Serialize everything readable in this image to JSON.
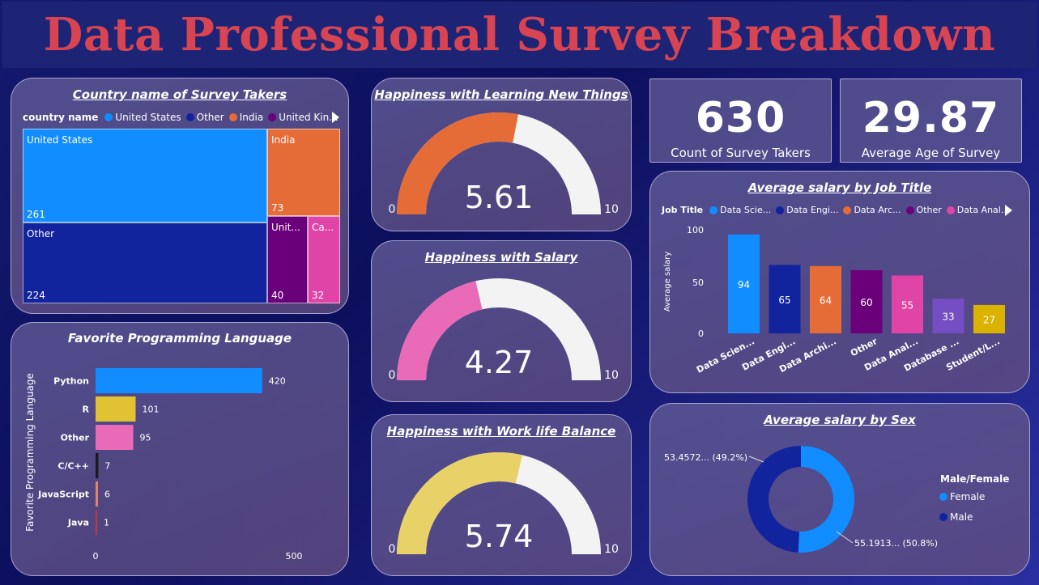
{
  "header": {
    "title": "Data Professional Survey Breakdown"
  },
  "treemap": {
    "title": "Country name of Survey Takers",
    "legend_label": "country name",
    "legend": [
      {
        "label": "United States",
        "color": "#118dff"
      },
      {
        "label": "Other",
        "color": "#12239e"
      },
      {
        "label": "India",
        "color": "#e66c37"
      },
      {
        "label": "United Kin...",
        "color": "#6b007b"
      }
    ],
    "cells": [
      {
        "name": "United States",
        "value": "261",
        "color": "#118dff"
      },
      {
        "name": "Other",
        "value": "224",
        "color": "#12239e"
      },
      {
        "name": "India",
        "value": "73",
        "color": "#e66c37"
      },
      {
        "name": "Unit...",
        "value": "40",
        "color": "#6b007b"
      },
      {
        "name": "Ca...",
        "value": "32",
        "color": "#e044a7"
      }
    ]
  },
  "languages": {
    "title": "Favorite Programming Language",
    "ylabel": "Favorite Programming Language",
    "x_ticks": [
      "0",
      "500"
    ],
    "xmax": 1000
  },
  "gauges": [
    {
      "title": "Happiness with Learning New Things",
      "value": 5.61,
      "label": "5.61",
      "min": "0",
      "max": "10",
      "color": "#e66c37"
    },
    {
      "title": "Happiness with Salary",
      "value": 4.27,
      "label": "4.27",
      "min": "0",
      "max": "10",
      "color": "#e96bb8"
    },
    {
      "title": "Happiness with Work life Balance",
      "value": 5.74,
      "label": "5.74",
      "min": "0",
      "max": "10",
      "color": "#e8d166"
    }
  ],
  "kpis": [
    {
      "value": "630",
      "label": "Count of Survey Takers"
    },
    {
      "value": "29.87",
      "label": "Average Age of Survey Takers"
    }
  ],
  "salary_job": {
    "title": "Average salary by Job Title",
    "legend_label": "Job Title",
    "legend": [
      {
        "label": "Data Scie...",
        "color": "#118dff"
      },
      {
        "label": "Data Engi...",
        "color": "#12239e"
      },
      {
        "label": "Data Arc...",
        "color": "#e66c37"
      },
      {
        "label": "Other",
        "color": "#6b007b"
      },
      {
        "label": "Data Anal...",
        "color": "#e044a7"
      }
    ],
    "ylabel": "Average salary",
    "y_ticks": [
      "0",
      "50",
      "100"
    ]
  },
  "salary_sex": {
    "title": "Average salary by Sex",
    "legend_title": "Male/Female",
    "legend": [
      {
        "label": "Female",
        "color": "#118dff"
      },
      {
        "label": "Male",
        "color": "#12239e"
      }
    ],
    "labels": [
      "53.4572... (49.2%)",
      "55.1913... (50.8%)"
    ]
  },
  "chart_data": [
    {
      "type": "treemap",
      "title": "Country name of Survey Takers",
      "categories": [
        "United States",
        "Other",
        "India",
        "United Kingdom",
        "Canada"
      ],
      "values": [
        261,
        224,
        73,
        40,
        32
      ]
    },
    {
      "type": "bar",
      "orientation": "horizontal",
      "title": "Favorite Programming Language",
      "ylabel": "Favorite Programming Language",
      "categories": [
        "Python",
        "R",
        "Other",
        "C/C++",
        "JavaScript",
        "Java"
      ],
      "values": [
        420,
        101,
        95,
        7,
        6,
        1
      ],
      "colors": [
        "#118dff",
        "#e0c232",
        "#e96bb8",
        "#1a1a1a",
        "#e8836b",
        "#c43a3a"
      ],
      "xlim": [
        0,
        1000
      ]
    },
    {
      "type": "bar",
      "title": "Average salary by Job Title",
      "ylabel": "Average salary",
      "categories": [
        "Data Scien...",
        "Data Engi...",
        "Data Archi...",
        "Other",
        "Data Anal...",
        "Database ...",
        "Student/L..."
      ],
      "values": [
        94,
        65,
        64,
        60,
        55,
        33,
        27
      ],
      "colors": [
        "#118dff",
        "#12239e",
        "#e66c37",
        "#6b007b",
        "#e044a7",
        "#744ec2",
        "#d9b300"
      ],
      "ylim": [
        0,
        110
      ]
    },
    {
      "type": "pie",
      "title": "Average salary by Sex",
      "categories": [
        "Female",
        "Male"
      ],
      "values": [
        55.1913,
        53.4572
      ],
      "colors": [
        "#118dff",
        "#12239e"
      ]
    }
  ]
}
